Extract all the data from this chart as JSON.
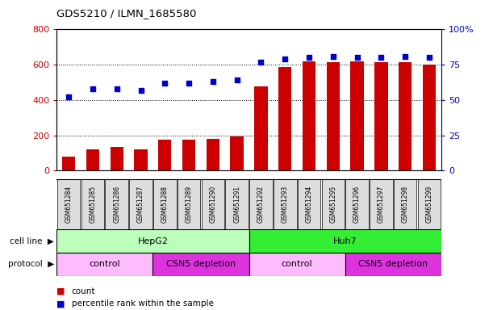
{
  "title": "GDS5210 / ILMN_1685580",
  "samples": [
    "GSM651284",
    "GSM651285",
    "GSM651286",
    "GSM651287",
    "GSM651288",
    "GSM651289",
    "GSM651290",
    "GSM651291",
    "GSM651292",
    "GSM651293",
    "GSM651294",
    "GSM651295",
    "GSM651296",
    "GSM651297",
    "GSM651298",
    "GSM651299"
  ],
  "counts": [
    80,
    120,
    135,
    120,
    175,
    175,
    180,
    195,
    475,
    585,
    620,
    615,
    620,
    615,
    615,
    600
  ],
  "percentiles": [
    52,
    58,
    58,
    57,
    62,
    62,
    63,
    64,
    77,
    79,
    80,
    81,
    80,
    80,
    81,
    80
  ],
  "bar_color": "#cc0000",
  "dot_color": "#0000cc",
  "left_ylim": [
    0,
    800
  ],
  "left_yticks": [
    0,
    200,
    400,
    600,
    800
  ],
  "right_ylim": [
    0,
    100
  ],
  "right_yticks": [
    0,
    25,
    50,
    75,
    100
  ],
  "right_yticklabels": [
    "0",
    "25",
    "50",
    "75",
    "100%"
  ],
  "cell_line_labels": [
    {
      "text": "HepG2",
      "start": 0,
      "end": 8,
      "color": "#bbffbb"
    },
    {
      "text": "Huh7",
      "start": 8,
      "end": 16,
      "color": "#33ee33"
    }
  ],
  "protocol_labels": [
    {
      "text": "control",
      "start": 0,
      "end": 4,
      "color": "#ffbbff"
    },
    {
      "text": "CSN5 depletion",
      "start": 4,
      "end": 8,
      "color": "#dd33dd"
    },
    {
      "text": "control",
      "start": 8,
      "end": 12,
      "color": "#ffbbff"
    },
    {
      "text": "CSN5 depletion",
      "start": 12,
      "end": 16,
      "color": "#dd33dd"
    }
  ],
  "legend_count_color": "#cc0000",
  "legend_pct_color": "#0000cc",
  "bar_width": 0.55,
  "chart_bg": "#ffffff",
  "tick_bg": "#dddddd"
}
